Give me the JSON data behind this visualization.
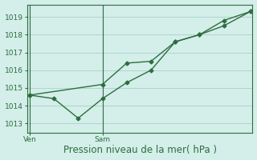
{
  "xlabel": "Pression niveau de la mer( hPa )",
  "background_color": "#d4eeea",
  "grid_color": "#b0d4ce",
  "line_color": "#2d6e3e",
  "spine_color": "#2d6e3e",
  "ylim": [
    1012.5,
    1019.7
  ],
  "yticks": [
    1013,
    1014,
    1015,
    1016,
    1017,
    1018,
    1019
  ],
  "xlim": [
    -0.01,
    1.01
  ],
  "vline_positions": [
    0.0,
    0.33
  ],
  "vline_labels": [
    "Ven",
    "Sam"
  ],
  "series1_x": [
    0.0,
    0.11,
    0.22,
    0.33,
    0.44,
    0.55,
    0.66,
    0.77,
    0.88,
    1.0
  ],
  "series1_y": [
    1014.6,
    1014.4,
    1013.3,
    1014.4,
    1015.3,
    1016.0,
    1017.6,
    1018.0,
    1018.8,
    1019.3
  ],
  "series2_x": [
    0.0,
    0.33,
    0.44,
    0.55,
    0.66,
    0.77,
    0.88,
    1.0
  ],
  "series2_y": [
    1014.6,
    1015.2,
    1016.4,
    1016.5,
    1017.6,
    1018.0,
    1018.5,
    1019.3
  ],
  "marker": "D",
  "markersize": 2.5,
  "linewidth": 1.0,
  "linestyle": "-",
  "tick_labelsize": 6.5,
  "xlabel_fontsize": 8.5
}
